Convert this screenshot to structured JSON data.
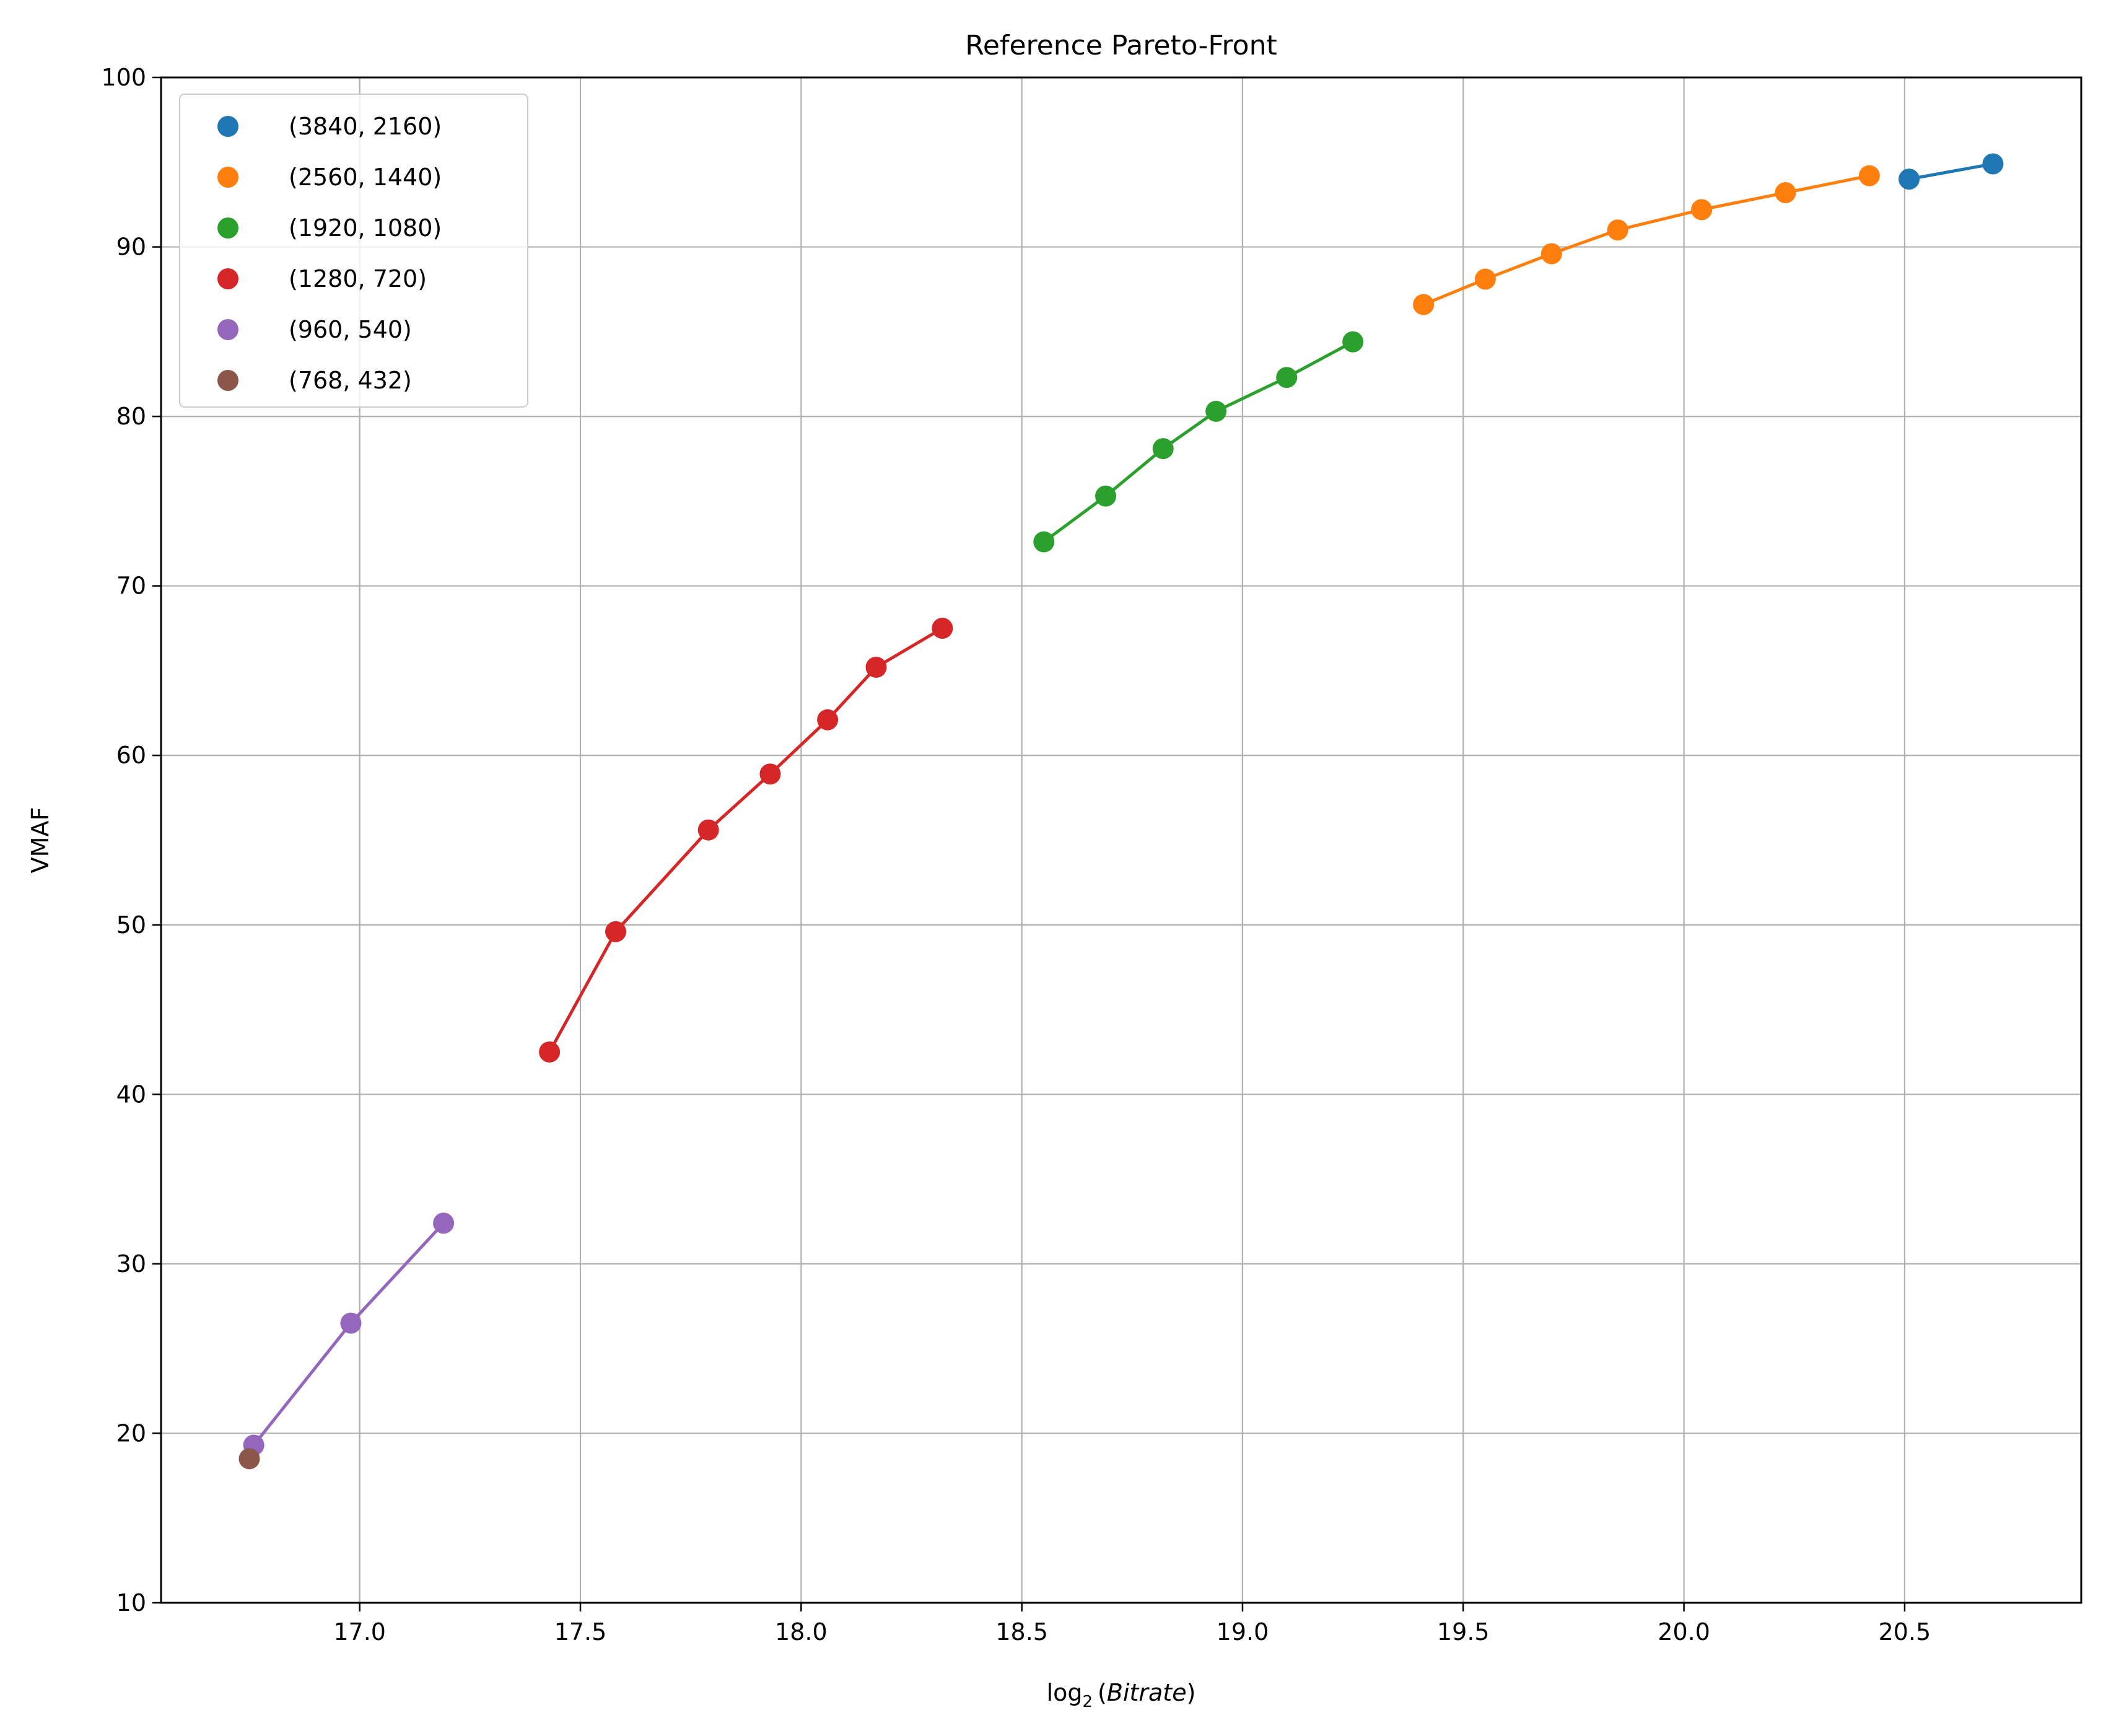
{
  "chart_data": {
    "type": "line",
    "title": "Reference Pareto-Front",
    "xlabel_main": "log",
    "xlabel_sub": "2",
    "xlabel_var": "Bitrate",
    "ylabel": "VMAF",
    "xlim": [
      16.55,
      20.9
    ],
    "ylim": [
      10,
      100
    ],
    "xticks": [
      17.0,
      17.5,
      18.0,
      18.5,
      19.0,
      19.5,
      20.0,
      20.5
    ],
    "xtick_labels": [
      "17.0",
      "17.5",
      "18.0",
      "18.5",
      "19.0",
      "19.5",
      "20.0",
      "20.5"
    ],
    "yticks": [
      10,
      20,
      30,
      40,
      50,
      60,
      70,
      80,
      90,
      100
    ],
    "ytick_labels": [
      "10",
      "20",
      "30",
      "40",
      "50",
      "60",
      "70",
      "80",
      "90",
      "100"
    ],
    "grid": true,
    "legend_position": "top-left",
    "series": [
      {
        "name": "(3840, 2160)",
        "color": "#1f77b4",
        "points": [
          [
            20.51,
            94.0
          ],
          [
            20.7,
            94.9
          ]
        ]
      },
      {
        "name": "(2560, 1440)",
        "color": "#ff7f0e",
        "points": [
          [
            19.41,
            86.6
          ],
          [
            19.55,
            88.1
          ],
          [
            19.7,
            89.6
          ],
          [
            19.85,
            91.0
          ],
          [
            20.04,
            92.2
          ],
          [
            20.23,
            93.2
          ],
          [
            20.42,
            94.2
          ]
        ]
      },
      {
        "name": "(1920, 1080)",
        "color": "#2ca02c",
        "points": [
          [
            18.55,
            72.6
          ],
          [
            18.69,
            75.3
          ],
          [
            18.82,
            78.1
          ],
          [
            18.94,
            80.3
          ],
          [
            19.1,
            82.3
          ],
          [
            19.25,
            84.4
          ]
        ]
      },
      {
        "name": "(1280, 720)",
        "color": "#d62728",
        "points": [
          [
            17.43,
            42.5
          ],
          [
            17.58,
            49.6
          ],
          [
            17.79,
            55.6
          ],
          [
            17.93,
            58.9
          ],
          [
            18.06,
            62.1
          ],
          [
            18.17,
            65.2
          ],
          [
            18.32,
            67.5
          ]
        ]
      },
      {
        "name": "(960, 540)",
        "color": "#9467bd",
        "points": [
          [
            16.76,
            19.3
          ],
          [
            16.98,
            26.5
          ],
          [
            17.19,
            32.4
          ]
        ]
      },
      {
        "name": "(768, 432)",
        "color": "#8c564b",
        "points": [
          [
            16.75,
            18.5
          ]
        ]
      }
    ]
  }
}
